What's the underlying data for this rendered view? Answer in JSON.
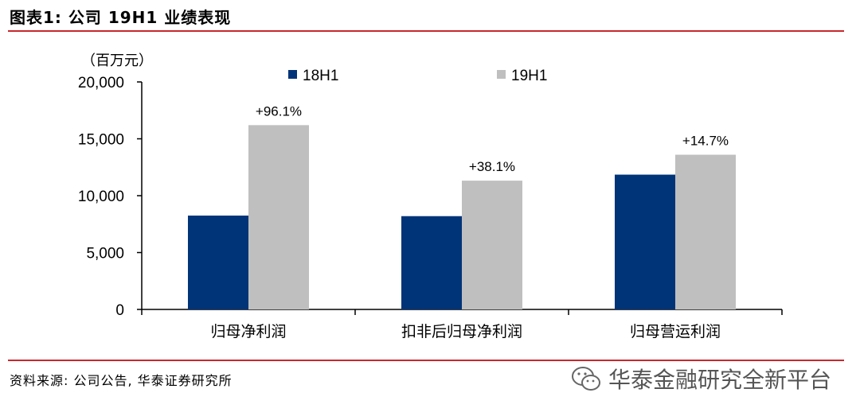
{
  "header": {
    "title": "图表1:  公司 19H1 业绩表现"
  },
  "footer": {
    "source": "资料来源: 公司公告, 华泰证券研究所",
    "watermark": "华泰金融研究全新平台",
    "watermark_icon": "wechat-icon"
  },
  "colors": {
    "accent_rule": "#c8282d",
    "series_18h1": "#003478",
    "series_19h1": "#bfbfbf"
  },
  "chart_data": {
    "type": "bar",
    "unit_label": "（百万元）",
    "categories": [
      "归母净利润",
      "扣非后归母净利润",
      "归母营运利润"
    ],
    "series": [
      {
        "name": "18H1",
        "values": [
          8250,
          8200,
          11850
        ]
      },
      {
        "name": "19H1",
        "values": [
          16200,
          11320,
          13600
        ]
      }
    ],
    "annotations": [
      "+96.1%",
      "+38.1%",
      "+14.7%"
    ],
    "ylim": [
      0,
      20000
    ],
    "yticks": [
      0,
      5000,
      10000,
      15000,
      20000
    ],
    "ytick_labels": [
      "0",
      "5,000",
      "10,000",
      "15,000",
      "20,000"
    ],
    "legend_position": "top",
    "grid": false
  }
}
